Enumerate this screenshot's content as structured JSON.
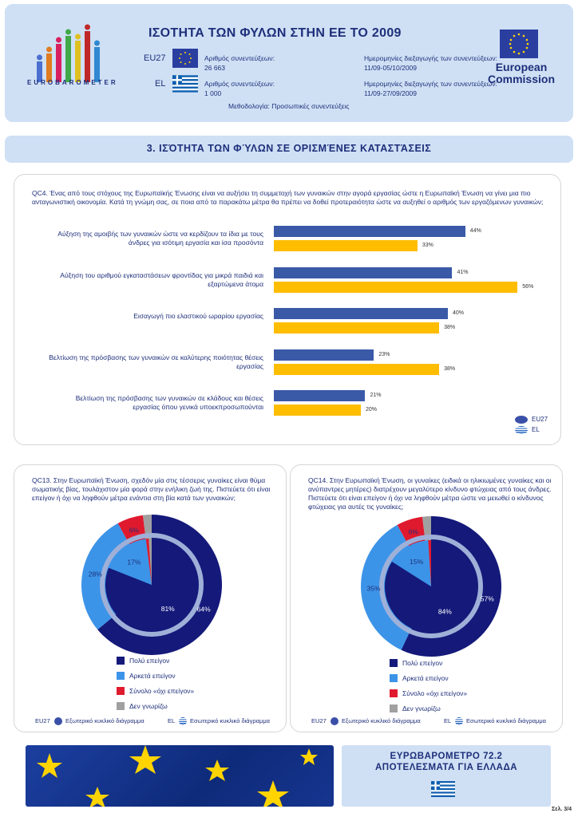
{
  "header": {
    "logo_word": "EUROBAROMETER",
    "title": "ΙΣΟΤΗΤΑ ΤΩΝ ΦΥΛΩΝ ΣΤΗΝ ΕΕ ΤΟ 2009",
    "eu27_label": "EU27",
    "el_label": "EL",
    "interviews_label": "Αριθμός συνεντεύξεων:",
    "eu27_interviews": "26 663",
    "el_interviews": "1 000",
    "dates_label": "Ημερομηνίες διεξαγωγής των συνεντεύξεων:",
    "eu27_dates": "11/09-05/10/2009",
    "el_dates": "11/09-27/09/2009",
    "methodology": "Μεθοδολογία: Προσωπικές συνεντεύξεις",
    "ec_line1": "European",
    "ec_line2": "Commission"
  },
  "section": {
    "title": "3. ΙΣΌΤΗΤΑ ΤΩΝ ΦΎΛΩΝ ΣΕ ΟΡΙΣΜΈΝΕΣ ΚΑΤΑΣΤΆΣΕΙΣ"
  },
  "qc4": {
    "question": "QC4. Ένας από τους στόχους της Ευρωπαϊκής Ένωσης είναι να αυξήσει τη συμμετοχή των γυναικών στην αγορά εργασίας ώστε η Ευρωπαϊκή Ένωση να γίνει μια πιο ανταγωνιστική οικονομία. Κατά τη γνώμη σας, σε ποια από τα παρακάτω μέτρα θα πρέπει να δοθεί προτεραιότητα ώστε να αυξηθεί ο αριθμός των εργαζόμενων γυναικών;",
    "legend_eu": "EU27",
    "legend_el": "EL"
  },
  "chart_data": [
    {
      "type": "bar",
      "categories": [
        "Αύξηση της αμοιβής των γυναικών ώστε να κερδίζουν τα ίδια με τους άνδρες για ισότιμη εργασία και ίσα προσόντα",
        "Αύξηση του αριθμού εγκαταστάσεων φροντίδας για μικρά παιδιά και εξαρτώμενα άτομα",
        "Εισαγωγή πιο ελαστικού ωραρίου εργασίας",
        "Βελτίωση της πρόσβασης των γυναικών σε καλύτερης ποιότητας θέσεις εργασίας",
        "Βελτίωση της πρόσβασης των γυναικών σε κλάδους και θέσεις εργασίας όπου γενικά υποεκπροσωπούνται"
      ],
      "series": [
        {
          "name": "EU27",
          "values": [
            44,
            41,
            40,
            23,
            21
          ],
          "labels": [
            "44%",
            "41%",
            "40%",
            "23%",
            "21%"
          ],
          "color": "#3a5aa8"
        },
        {
          "name": "EL",
          "values": [
            33,
            56,
            38,
            38,
            20
          ],
          "labels": [
            "33%",
            "56%",
            "38%",
            "38%",
            "20%"
          ],
          "color": "#ffbd00"
        }
      ]
    },
    {
      "type": "pie",
      "question": "QC13. Στην Ευρωπαϊκή Ένωση, σχεδόν μία στις τέσσερις γυναίκες είναι θύμα σωματικής βίας, τουλάχιστον μία φορά στην ενήλικη ζωή της. Πιστεύετε ότι είναι επείγον ή όχι να ληφθούν μέτρα ενάντια στη βία κατά των γυναικών;",
      "categories": [
        "Πολύ επείγον",
        "Αρκετά επείγον",
        "Σύνολο «όχι επείγον»",
        "Δεν γνωρίζω"
      ],
      "colors": [
        "#14197a",
        "#3c94e8",
        "#e01a2e",
        "#a0a0a0"
      ],
      "outer": {
        "name": "EU27",
        "values": [
          64,
          28,
          6,
          2
        ],
        "labels": [
          "64%",
          "28%",
          "6%",
          ""
        ]
      },
      "inner": {
        "name": "EL",
        "values": [
          81,
          17,
          1,
          1
        ],
        "labels": [
          "81%",
          "17%",
          "",
          ""
        ]
      },
      "footer_eu": "Εξωτερικό κυκλικό διάγραμμα",
      "footer_el": "Εσωτερικό κυκλικό διάγραμμα"
    },
    {
      "type": "pie",
      "question": "QC14. Στην Ευρωπαϊκή Ένωση, οι γυναίκες (ειδικά οι ηλικιωμένες γυναίκες και οι ανύπαντρες μητέρες) διατρέχουν μεγαλύτερο κίνδυνο φτώχειας από τους άνδρες. Πιστεύετε ότι είναι επείγον ή όχι να ληφθούν μέτρα ώστε να μειωθεί ο κίνδυνος φτώχειας για αυτές τις γυναίκες;",
      "categories": [
        "Πολύ επείγον",
        "Αρκετά επείγον",
        "Σύνολο «όχι επείγον»",
        "Δεν γνωρίζω"
      ],
      "colors": [
        "#14197a",
        "#3c94e8",
        "#e01a2e",
        "#a0a0a0"
      ],
      "outer": {
        "name": "EU27",
        "values": [
          57,
          35,
          6,
          2
        ],
        "labels": [
          "57%",
          "35%",
          "6%",
          ""
        ]
      },
      "inner": {
        "name": "EL",
        "values": [
          84,
          15,
          1,
          0
        ],
        "labels": [
          "84%",
          "15%",
          "",
          ""
        ]
      },
      "footer_eu": "Εξωτερικό κυκλικό διάγραμμα",
      "footer_el": "Εσωτερικό κυκλικό διάγραμμα"
    }
  ],
  "pie_footer": {
    "eu": "EU27",
    "el": "EL"
  },
  "banner": {
    "line1": "ΕΥΡΩΒΑΡΟΜΕΤΡΟ 72.2",
    "line2": "ΑΠΟΤΕΛΕΣΜΑΤΑ ΓΙΑ ΕΛΛΑΔΑ"
  },
  "page": {
    "number": "Σελ. 3/4"
  }
}
